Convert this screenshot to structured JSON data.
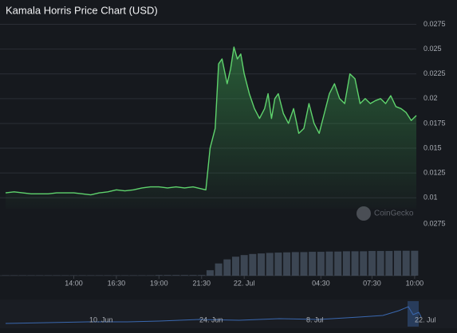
{
  "chart_data": {
    "type": "line",
    "title": "Kamala Horris Price Chart (USD)",
    "watermark": "CoinGecko",
    "xlim": [
      10,
      34.1
    ],
    "xticks": [
      {
        "value": 14,
        "label": "14:00"
      },
      {
        "value": 16.5,
        "label": "16:30"
      },
      {
        "value": 19,
        "label": "19:00"
      },
      {
        "value": 21.5,
        "label": "21:30"
      },
      {
        "value": 24,
        "label": "22. Jul"
      },
      {
        "value": 28.5,
        "label": "04:30"
      },
      {
        "value": 31.5,
        "label": "07:30"
      },
      {
        "value": 34,
        "label": "10:00"
      }
    ],
    "ylim": [
      0.0089,
      0.0285
    ],
    "yticks": [
      0.01,
      0.0125,
      0.015,
      0.0175,
      0.02,
      0.0225,
      0.025,
      0.0275
    ],
    "grid": true,
    "series": [
      {
        "name": "Price",
        "color": "#5fd36d",
        "x": [
          10,
          10.5,
          11,
          11.5,
          12,
          12.5,
          13,
          13.5,
          14,
          14.5,
          15,
          15.5,
          16,
          16.5,
          17,
          17.5,
          18,
          18.5,
          19,
          19.5,
          20,
          20.5,
          21,
          21.5,
          21.75,
          22,
          22.3,
          22.5,
          22.7,
          23,
          23.2,
          23.4,
          23.6,
          23.8,
          24,
          24.3,
          24.6,
          24.9,
          25.2,
          25.4,
          25.6,
          25.8,
          26,
          26.3,
          26.6,
          26.9,
          27.2,
          27.5,
          27.8,
          28.1,
          28.4,
          28.7,
          29,
          29.3,
          29.6,
          29.9,
          30.2,
          30.5,
          30.8,
          31.1,
          31.4,
          31.7,
          32,
          32.3,
          32.6,
          32.9,
          33.2,
          33.5,
          33.8,
          34.1
        ],
        "values": [
          0.0105,
          0.0106,
          0.0105,
          0.0104,
          0.0104,
          0.0104,
          0.0105,
          0.0105,
          0.0105,
          0.0104,
          0.0103,
          0.0105,
          0.0106,
          0.0108,
          0.0107,
          0.0108,
          0.011,
          0.0111,
          0.0111,
          0.011,
          0.0111,
          0.011,
          0.0111,
          0.0109,
          0.0108,
          0.015,
          0.017,
          0.0235,
          0.024,
          0.0215,
          0.023,
          0.0252,
          0.024,
          0.0245,
          0.0225,
          0.0205,
          0.019,
          0.018,
          0.019,
          0.0205,
          0.018,
          0.02,
          0.0205,
          0.0185,
          0.0175,
          0.019,
          0.0165,
          0.017,
          0.0195,
          0.0175,
          0.0165,
          0.0185,
          0.0205,
          0.0215,
          0.02,
          0.0195,
          0.0225,
          0.022,
          0.0195,
          0.02,
          0.0195,
          0.0198,
          0.02,
          0.0195,
          0.0203,
          0.0192,
          0.019,
          0.0186,
          0.0178,
          0.0183
        ]
      }
    ],
    "volume_axis_label": "0.0275",
    "volume": {
      "vlim": [
        0,
        100
      ],
      "x": [
        10,
        10.5,
        11,
        11.5,
        12,
        12.5,
        13,
        13.5,
        14,
        14.5,
        15,
        15.5,
        16,
        16.5,
        17,
        17.5,
        18,
        18.5,
        19,
        19.5,
        20,
        20.5,
        21,
        21.5,
        22,
        22.5,
        23,
        23.5,
        24,
        24.5,
        25,
        25.5,
        26,
        26.5,
        27,
        27.5,
        28,
        28.5,
        29,
        29.5,
        30,
        30.5,
        31,
        31.5,
        32,
        32.5,
        33,
        33.5,
        34
      ],
      "values": [
        1,
        1,
        1,
        1,
        1,
        1,
        1,
        1,
        1,
        1,
        1,
        1,
        1,
        1,
        1,
        1,
        1,
        1,
        2,
        2,
        2,
        2,
        2,
        2,
        20,
        45,
        60,
        70,
        76,
        80,
        82,
        84,
        85,
        86,
        87,
        87,
        88,
        88,
        89,
        89,
        90,
        90,
        90,
        91,
        91,
        91,
        92,
        92,
        92
      ]
    },
    "navigator": {
      "labels": [
        "10. Jun",
        "24. Jun",
        "8. Jul",
        "22. Jul"
      ]
    }
  }
}
